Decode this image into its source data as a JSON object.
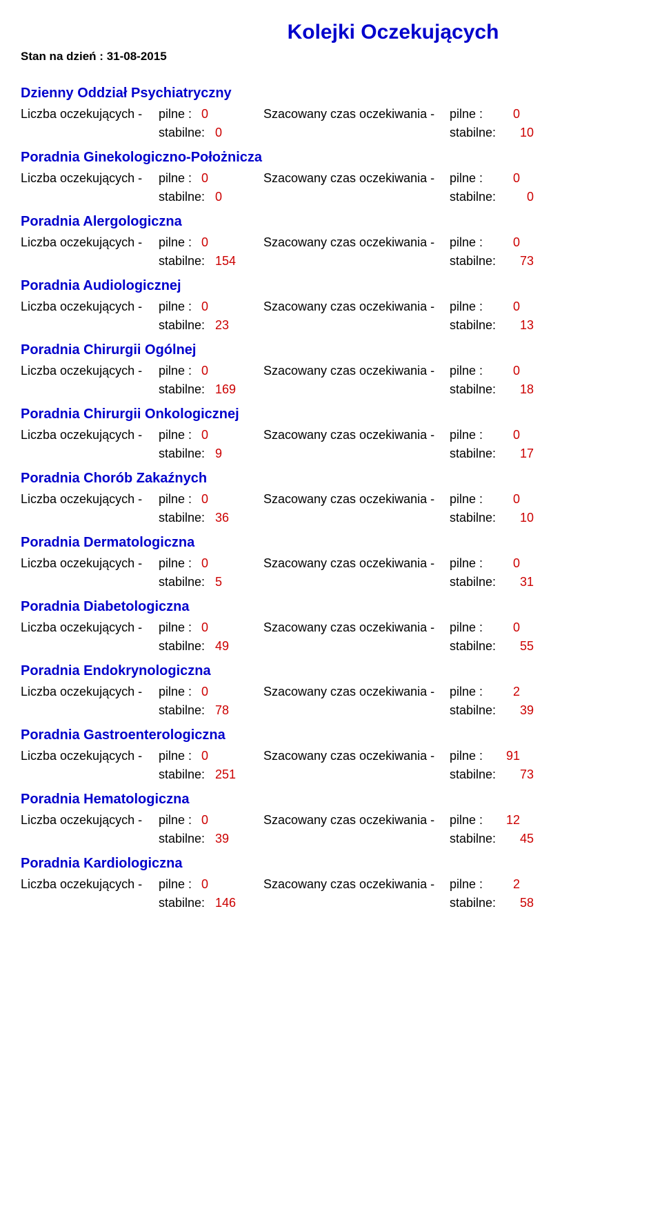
{
  "page": {
    "title": "Kolejki Oczekujących",
    "status_label": "Stan na dzień : ",
    "status_date": "31-08-2015"
  },
  "labels": {
    "waiting_count": "Liczba oczekujących - ",
    "pilne": "pilne :",
    "stabilne": "stabilne:",
    "est_time": "Szacowany czas oczekiwania - "
  },
  "departments": [
    {
      "name": "Dzienny Oddział Psychiatryczny",
      "count_pilne": "0",
      "count_stabilne": "0",
      "time_pilne": "0",
      "time_stabilne": "10"
    },
    {
      "name": "Poradnia Ginekologiczno-Położnicza",
      "count_pilne": "0",
      "count_stabilne": "0",
      "time_pilne": "0",
      "time_stabilne": "0"
    },
    {
      "name": "Poradnia Alergologiczna",
      "count_pilne": "0",
      "count_stabilne": "154",
      "time_pilne": "0",
      "time_stabilne": "73"
    },
    {
      "name": "Poradnia Audiologicznej",
      "count_pilne": "0",
      "count_stabilne": "23",
      "time_pilne": "0",
      "time_stabilne": "13"
    },
    {
      "name": "Poradnia Chirurgii Ogólnej",
      "count_pilne": "0",
      "count_stabilne": "169",
      "time_pilne": "0",
      "time_stabilne": "18"
    },
    {
      "name": "Poradnia Chirurgii Onkologicznej",
      "count_pilne": "0",
      "count_stabilne": "9",
      "time_pilne": "0",
      "time_stabilne": "17"
    },
    {
      "name": "Poradnia Chorób Zakaźnych",
      "count_pilne": "0",
      "count_stabilne": "36",
      "time_pilne": "0",
      "time_stabilne": "10"
    },
    {
      "name": "Poradnia Dermatologiczna",
      "count_pilne": "0",
      "count_stabilne": "5",
      "time_pilne": "0",
      "time_stabilne": "31"
    },
    {
      "name": "Poradnia Diabetologiczna",
      "count_pilne": "0",
      "count_stabilne": "49",
      "time_pilne": "0",
      "time_stabilne": "55"
    },
    {
      "name": "Poradnia Endokrynologiczna",
      "count_pilne": "0",
      "count_stabilne": "78",
      "time_pilne": "2",
      "time_stabilne": "39"
    },
    {
      "name": "Poradnia Gastroenterologiczna",
      "count_pilne": "0",
      "count_stabilne": "251",
      "time_pilne": "91",
      "time_stabilne": "73"
    },
    {
      "name": "Poradnia Hematologiczna",
      "count_pilne": "0",
      "count_stabilne": "39",
      "time_pilne": "12",
      "time_stabilne": "45"
    },
    {
      "name": "Poradnia Kardiologiczna",
      "count_pilne": "0",
      "count_stabilne": "146",
      "time_pilne": "2",
      "time_stabilne": "58"
    }
  ],
  "style": {
    "title_color": "#0000cc",
    "value_color": "#cc0000",
    "text_color": "#000000",
    "background_color": "#ffffff",
    "title_fontsize": 30,
    "body_fontsize": 18,
    "dept_fontsize": 20
  }
}
